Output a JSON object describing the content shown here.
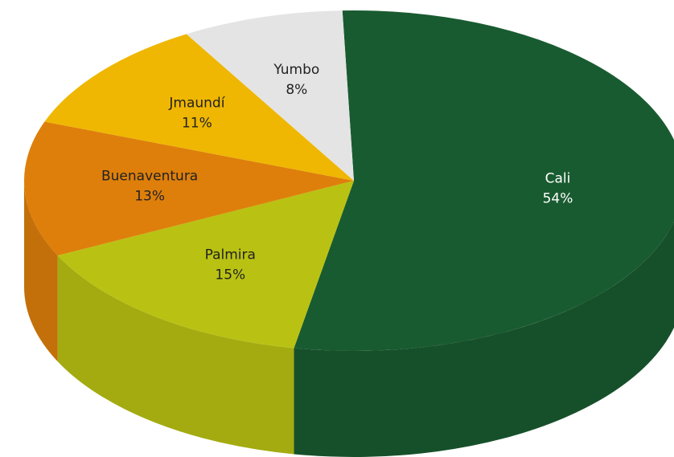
{
  "chart_data": {
    "type": "pie3d",
    "categories": [
      "Cali",
      "Palmira",
      "Buenaventura",
      "Jmaundí",
      "Yumbo"
    ],
    "values": [
      54,
      15,
      13,
      11,
      8
    ],
    "value_labels": [
      "54%",
      "15%",
      "13%",
      "11%",
      "8%"
    ],
    "colors": [
      "#195b30",
      "#b9c212",
      "#de7f0b",
      "#efb702",
      "#e4e4e4"
    ]
  }
}
